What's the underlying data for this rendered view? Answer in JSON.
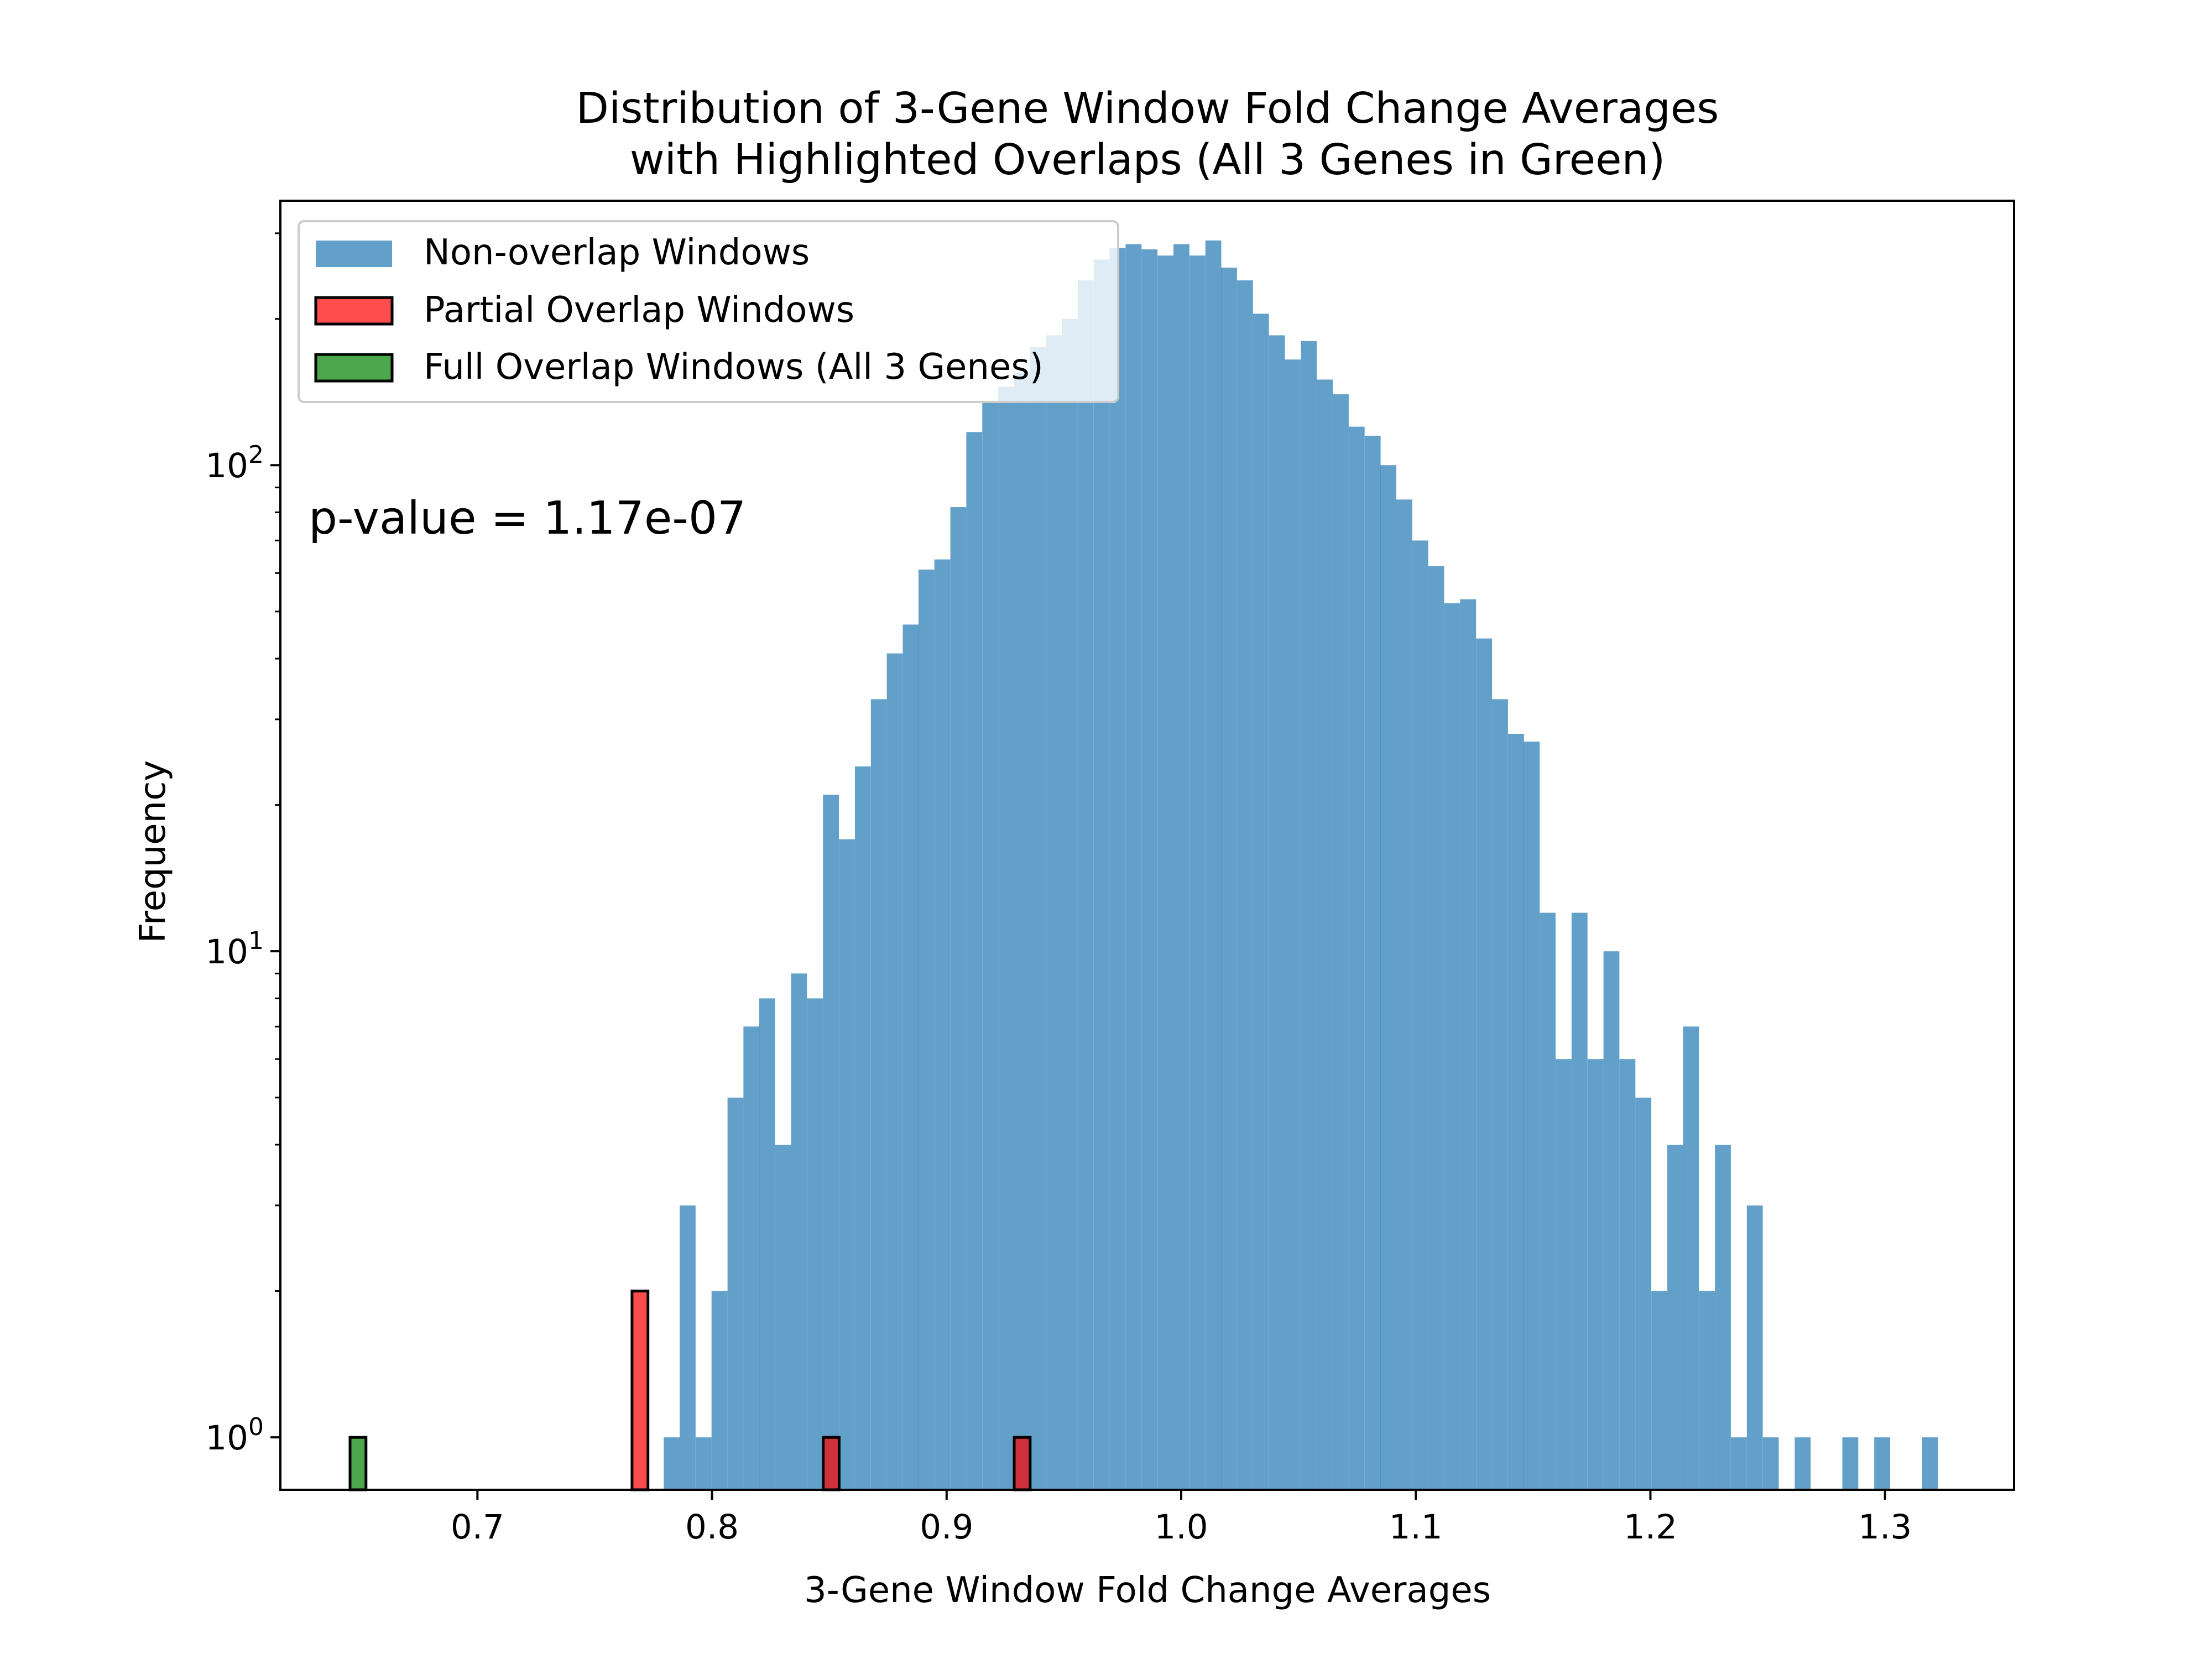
{
  "chart_data": {
    "type": "bar",
    "title_line1": "Distribution of 3-Gene Window Fold Change Averages",
    "title_line2": "with Highlighted Overlaps (All 3 Genes in Green)",
    "xlabel": "3-Gene Window Fold Change Averages",
    "ylabel": "Frequency",
    "y_scale": "log",
    "xlim": [
      0.616,
      1.355
    ],
    "ylim": [
      0.78,
      350
    ],
    "x_ticks": [
      "0.7",
      "0.8",
      "0.9",
      "1.0",
      "1.1",
      "1.2",
      "1.3"
    ],
    "x_tick_values": [
      0.7,
      0.8,
      0.9,
      1.0,
      1.1,
      1.2,
      1.3
    ],
    "y_ticks": [
      {
        "value": 1,
        "base": "10",
        "exp": "0"
      },
      {
        "value": 10,
        "base": "10",
        "exp": "1"
      },
      {
        "value": 100,
        "base": "10",
        "exp": "2"
      }
    ],
    "annotation": "p-value = 1.17e-07",
    "legend_position": "upper left",
    "bin_width": 0.00679,
    "series": [
      {
        "name": "Non-overlap Windows",
        "color": "#1f77b4",
        "alpha": 0.7,
        "bins": [
          [
            0.7794,
            1
          ],
          [
            0.7862,
            3
          ],
          [
            0.793,
            1
          ],
          [
            0.7998,
            2
          ],
          [
            0.8066,
            5
          ],
          [
            0.8134,
            7
          ],
          [
            0.8201,
            8
          ],
          [
            0.8269,
            4
          ],
          [
            0.8337,
            9
          ],
          [
            0.8405,
            8
          ],
          [
            0.8473,
            21
          ],
          [
            0.8541,
            17
          ],
          [
            0.8609,
            24
          ],
          [
            0.8677,
            33
          ],
          [
            0.8745,
            41
          ],
          [
            0.8813,
            47
          ],
          [
            0.888,
            61
          ],
          [
            0.8948,
            64
          ],
          [
            0.9016,
            82
          ],
          [
            0.9084,
            117
          ],
          [
            0.9152,
            135
          ],
          [
            0.922,
            145
          ],
          [
            0.9288,
            155
          ],
          [
            0.9356,
            175
          ],
          [
            0.9424,
            185
          ],
          [
            0.9491,
            200
          ],
          [
            0.9559,
            240
          ],
          [
            0.9627,
            265
          ],
          [
            0.9695,
            280
          ],
          [
            0.9763,
            285
          ],
          [
            0.9831,
            278
          ],
          [
            0.9899,
            270
          ],
          [
            0.9967,
            285
          ],
          [
            1.0035,
            270
          ],
          [
            1.0103,
            290
          ],
          [
            1.017,
            255
          ],
          [
            1.0238,
            240
          ],
          [
            1.0306,
            205
          ],
          [
            1.0374,
            185
          ],
          [
            1.0442,
            165
          ],
          [
            1.051,
            180
          ],
          [
            1.0578,
            150
          ],
          [
            1.0646,
            140
          ],
          [
            1.0714,
            120
          ],
          [
            1.0782,
            115
          ],
          [
            1.0849,
            100
          ],
          [
            1.0917,
            85
          ],
          [
            1.0985,
            70
          ],
          [
            1.1053,
            62
          ],
          [
            1.1121,
            52
          ],
          [
            1.1189,
            53
          ],
          [
            1.1257,
            44
          ],
          [
            1.1325,
            33
          ],
          [
            1.1393,
            28
          ],
          [
            1.146,
            27
          ],
          [
            1.1528,
            12
          ],
          [
            1.1596,
            6
          ],
          [
            1.1664,
            12
          ],
          [
            1.1732,
            6
          ],
          [
            1.18,
            10
          ],
          [
            1.1868,
            6
          ],
          [
            1.1936,
            5
          ],
          [
            1.2004,
            2
          ],
          [
            1.2072,
            4
          ],
          [
            1.2139,
            7
          ],
          [
            1.2207,
            2
          ],
          [
            1.2275,
            4
          ],
          [
            1.2343,
            1
          ],
          [
            1.2411,
            3
          ],
          [
            1.2479,
            1
          ],
          [
            1.2615,
            1
          ],
          [
            1.2818,
            1
          ],
          [
            1.2954,
            1
          ],
          [
            1.3158,
            1
          ]
        ]
      },
      {
        "name": "Partial Overlap Windows",
        "color": "#ff0000",
        "alpha": 0.7,
        "bins": [
          [
            0.7659,
            2
          ],
          [
            0.8474,
            1
          ],
          [
            0.9288,
            1
          ]
        ]
      },
      {
        "name": "Full Overlap Windows (All 3 Genes)",
        "color": "#008000",
        "alpha": 0.7,
        "bins": [
          [
            0.6457,
            1
          ]
        ]
      }
    ]
  }
}
